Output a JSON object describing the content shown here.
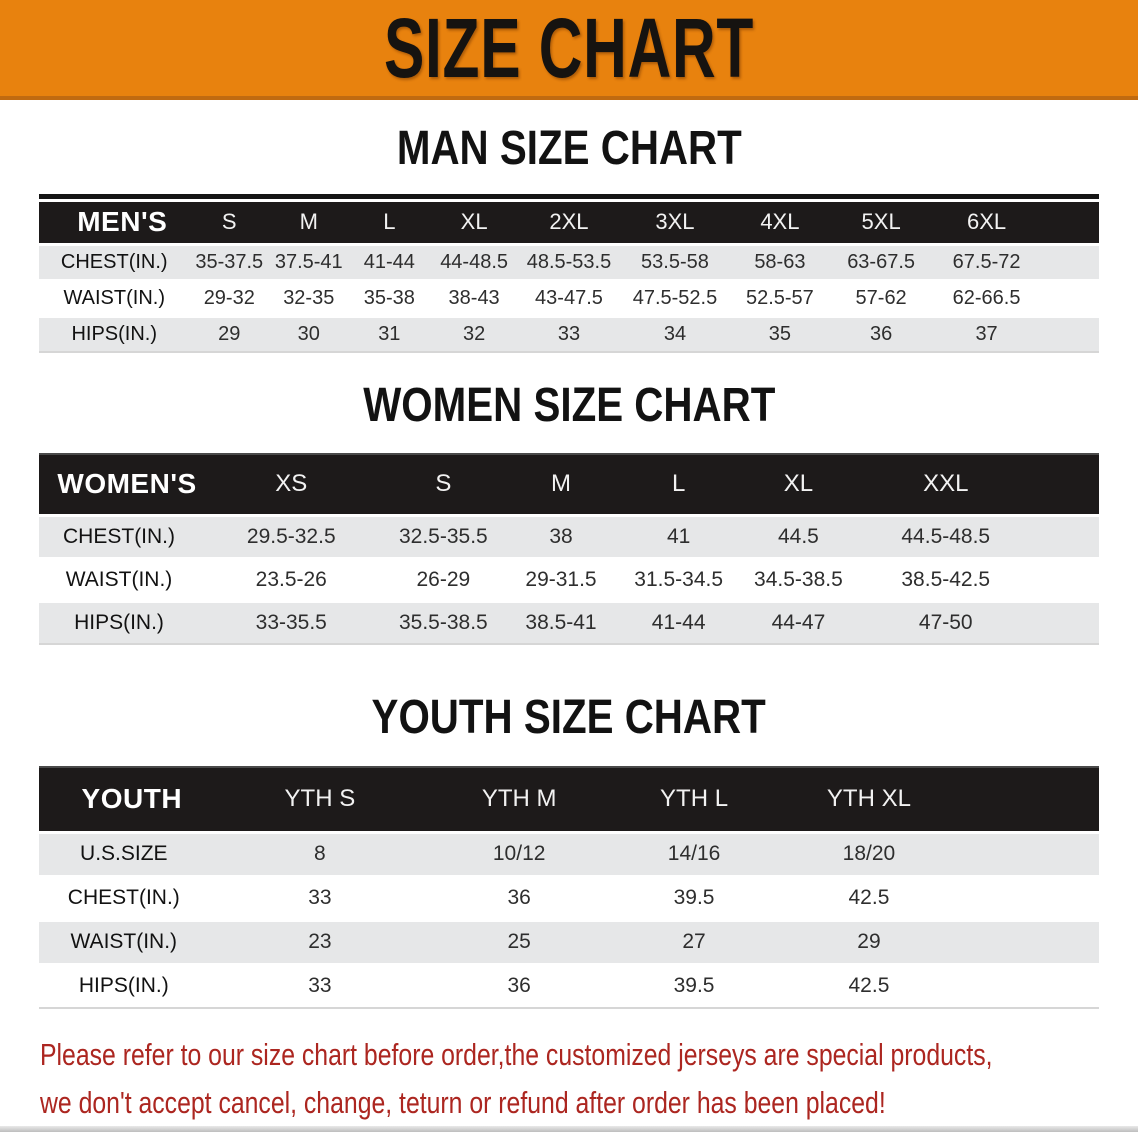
{
  "banner": {
    "title": "SIZE CHART",
    "bg_color": "#E8820E",
    "text_color": "#161310"
  },
  "sections": [
    {
      "id": "men",
      "title": "MAN SIZE CHART",
      "table": {
        "header_label": "MEN'S",
        "columns": [
          "S",
          "M",
          "L",
          "XL",
          "2XL",
          "3XL",
          "4XL",
          "5XL",
          "6XL"
        ],
        "rows": [
          {
            "label": "CHEST(IN.)",
            "values": [
              "35-37.5",
              "37.5-41",
              "41-44",
              "44-48.5",
              "48.5-53.5",
              "53.5-58",
              "58-63",
              "63-67.5",
              "67.5-72"
            ]
          },
          {
            "label": "WAIST(IN.)",
            "values": [
              "29-32",
              "32-35",
              "35-38",
              "38-43",
              "43-47.5",
              "47.5-52.5",
              "52.5-57",
              "57-62",
              "62-66.5"
            ]
          },
          {
            "label": "HIPS(IN.)",
            "values": [
              "29",
              "30",
              "31",
              "32",
              "33",
              "34",
              "35",
              "36",
              "37"
            ]
          }
        ]
      }
    },
    {
      "id": "women",
      "title": "WOMEN SIZE CHART",
      "table": {
        "header_label": "WOMEN'S",
        "columns": [
          "XS",
          "S",
          "M",
          "L",
          "XL",
          "XXL"
        ],
        "rows": [
          {
            "label": "CHEST(IN.)",
            "values": [
              "29.5-32.5",
              "32.5-35.5",
              "38",
              "41",
              "44.5",
              "44.5-48.5"
            ]
          },
          {
            "label": "WAIST(IN.)",
            "values": [
              "23.5-26",
              "26-29",
              "29-31.5",
              "31.5-34.5",
              "34.5-38.5",
              "38.5-42.5"
            ]
          },
          {
            "label": "HIPS(IN.)",
            "values": [
              "33-35.5",
              "35.5-38.5",
              "38.5-41",
              "41-44",
              "44-47",
              "47-50"
            ]
          }
        ]
      }
    },
    {
      "id": "youth",
      "title": "YOUTH SIZE CHART",
      "table": {
        "header_label": "YOUTH",
        "columns": [
          "YTH S",
          "YTH M",
          "YTH L",
          "YTH XL"
        ],
        "rows": [
          {
            "label": "U.S.SIZE",
            "values": [
              "8",
              "10/12",
              "14/16",
              "18/20"
            ]
          },
          {
            "label": "CHEST(IN.)",
            "values": [
              "33",
              "36",
              "39.5",
              "42.5"
            ]
          },
          {
            "label": "WAIST(IN.)",
            "values": [
              "23",
              "25",
              "27",
              "29"
            ]
          },
          {
            "label": "HIPS(IN.)",
            "values": [
              "33",
              "36",
              "39.5",
              "42.5"
            ]
          }
        ]
      }
    }
  ],
  "footer": {
    "line1": "Please refer to our size chart before order,the customized jerseys are special products,",
    "line2": "we don't accept cancel, change, teturn or refund after order has been placed!",
    "text_color": "#AC2620"
  }
}
